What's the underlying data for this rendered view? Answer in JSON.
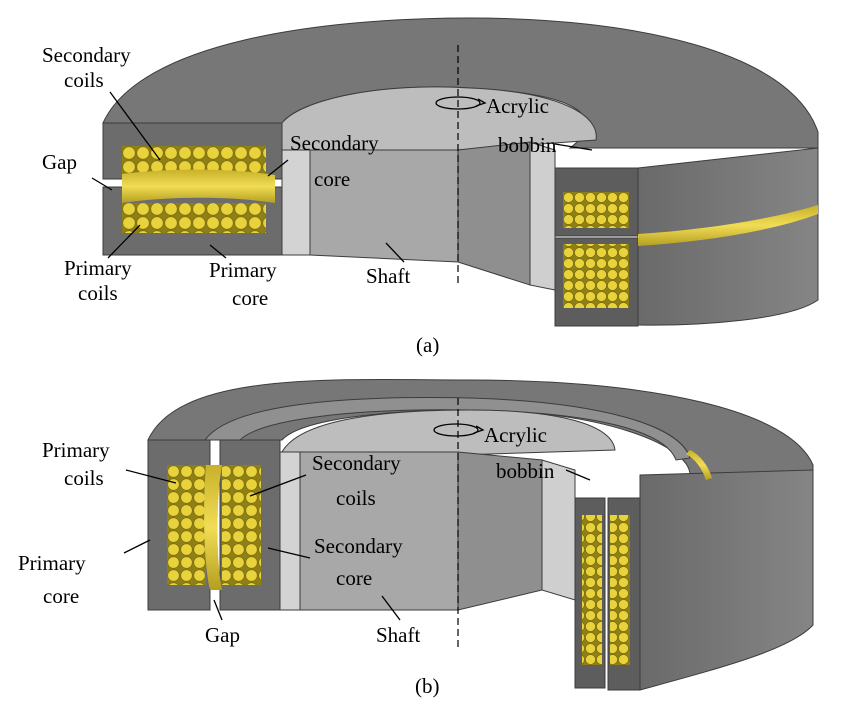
{
  "panel_a": {
    "caption": "(a)",
    "labels": {
      "secondary_coils_1": "Secondary",
      "secondary_coils_2": "coils",
      "gap": "Gap",
      "primary_coils_1": "Primary",
      "primary_coils_2": "coils",
      "primary_core_1": "Primary",
      "primary_core_2": "core",
      "secondary_core_1": "Secondary",
      "secondary_core_2": "core",
      "shaft": "Shaft",
      "acrylic_bobbin_1": "Acrylic",
      "acrylic_bobbin_2": "bobbin"
    }
  },
  "panel_b": {
    "caption": "(b)",
    "labels": {
      "primary_coils_1": "Primary",
      "primary_coils_2": "coils",
      "primary_core_1": "Primary",
      "primary_core_2": "core",
      "gap": "Gap",
      "secondary_coils_1": "Secondary",
      "secondary_coils_2": "coils",
      "secondary_core_1": "Secondary",
      "secondary_core_2": "core",
      "shaft": "Shaft",
      "acrylic_bobbin_1": "Acrylic",
      "acrylic_bobbin_2": "bobbin"
    }
  },
  "colors": {
    "core_dark": "#6f6f6f",
    "core_top": "#7a7a7a",
    "bobbin": "#cfcfcf",
    "shaft": "#a9a9a9",
    "coil": "#e6cf37",
    "coil_dark": "#a9951c"
  }
}
